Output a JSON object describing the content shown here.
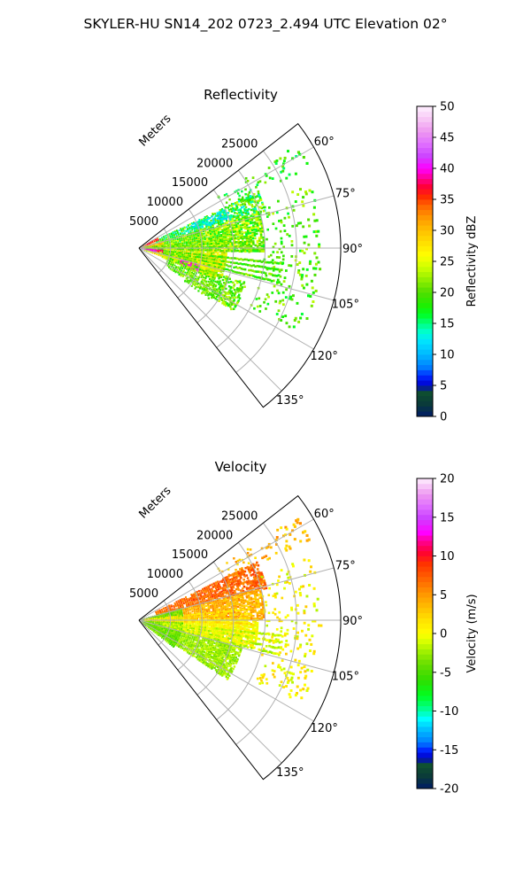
{
  "figure": {
    "suptitle": "SKYLER-HU  SN14_202  0723_2.494 UTC Elevation 02°"
  },
  "chart_data": [
    {
      "type": "heatmap",
      "subtype": "polar-sector (PPI radar sweep)",
      "title": "Reflectivity",
      "radial_label": "Meters",
      "radial_ticks": [
        5000,
        10000,
        15000,
        20000,
        25000
      ],
      "rlim": [
        0,
        32000
      ],
      "azimuth_range_deg": [
        52,
        142
      ],
      "azimuth_ticks": [
        "60°",
        "75°",
        "90°",
        "105°",
        "120°",
        "135°"
      ],
      "azimuth_tick_values": [
        60,
        75,
        90,
        105,
        120,
        135
      ],
      "grid": true,
      "colorbar": {
        "label": "Reflectivity dBZ",
        "min": 0,
        "max": 50,
        "ticks": [
          0,
          5,
          10,
          15,
          20,
          25,
          30,
          35,
          40,
          45,
          50
        ],
        "stops": [
          {
            "v": 0,
            "c": "#001c66"
          },
          {
            "v": 2,
            "c": "#0a3a3a"
          },
          {
            "v": 4,
            "c": "#0f5030"
          },
          {
            "v": 5,
            "c": "#0000cc"
          },
          {
            "v": 6.5,
            "c": "#0028ff"
          },
          {
            "v": 8,
            "c": "#0080ff"
          },
          {
            "v": 10,
            "c": "#00b8ff"
          },
          {
            "v": 12,
            "c": "#00e0ff"
          },
          {
            "v": 13.5,
            "c": "#00ffd8"
          },
          {
            "v": 15,
            "c": "#00ff80"
          },
          {
            "v": 16.5,
            "c": "#00ff20"
          },
          {
            "v": 18,
            "c": "#20ee00"
          },
          {
            "v": 20,
            "c": "#50dd00"
          },
          {
            "v": 22,
            "c": "#90ee00"
          },
          {
            "v": 24,
            "c": "#ccff00"
          },
          {
            "v": 26,
            "c": "#ffff00"
          },
          {
            "v": 28,
            "c": "#ffe000"
          },
          {
            "v": 30,
            "c": "#ffc000"
          },
          {
            "v": 32,
            "c": "#ff9900"
          },
          {
            "v": 34,
            "c": "#ff6600"
          },
          {
            "v": 35.5,
            "c": "#ff2a00"
          },
          {
            "v": 37,
            "c": "#ff0033"
          },
          {
            "v": 38.5,
            "c": "#ff0099"
          },
          {
            "v": 40,
            "c": "#ff00ff"
          },
          {
            "v": 42,
            "c": "#cc44ff"
          },
          {
            "v": 44,
            "c": "#e070ff"
          },
          {
            "v": 46,
            "c": "#ee99f0"
          },
          {
            "v": 48,
            "c": "#f7c8f5"
          },
          {
            "v": 50,
            "c": "#fff0ff"
          }
        ]
      },
      "sweep": {
        "field": "reflectivity",
        "bands": [
          {
            "az": [
              57,
              65
            ],
            "r": [
              15000,
              30000
            ],
            "v": [
              15,
              22
            ],
            "d": 0.12
          },
          {
            "az": [
              65,
              74
            ],
            "r": [
              3000,
              21000
            ],
            "v": [
              12,
              24
            ],
            "d": 0.55
          },
          {
            "az": [
              66,
              72
            ],
            "r": [
              9000,
              15000
            ],
            "v": [
              10,
              16
            ],
            "d": 0.6
          },
          {
            "az": [
              74,
              92
            ],
            "r": [
              2000,
              20000
            ],
            "v": [
              16,
              26
            ],
            "d": 0.7
          },
          {
            "az": [
              92,
              110
            ],
            "r": [
              1000,
              14000
            ],
            "v": [
              20,
              30
            ],
            "d": 0.75
          },
          {
            "az": [
              100,
              112
            ],
            "r": [
              4000,
              13000
            ],
            "v": [
              22,
              30
            ],
            "d": 0.8
          },
          {
            "az": [
              106,
              112
            ],
            "r": [
              7000,
              10000
            ],
            "v": [
              38,
              42
            ],
            "d": 0.5
          },
          {
            "az": [
              108,
              124
            ],
            "r": [
              5000,
              18000
            ],
            "v": [
              17,
              24
            ],
            "d": 0.45
          },
          {
            "az": [
              118,
              126
            ],
            "r": [
              9000,
              14000
            ],
            "v": [
              18,
              23
            ],
            "d": 0.3
          },
          {
            "az": [
              70,
              118
            ],
            "r": [
              20000,
              29000
            ],
            "v": [
              16,
              24
            ],
            "d": 0.1
          },
          {
            "az": [
              92,
              100
            ],
            "r": [
              1500,
              4000
            ],
            "v": [
              36,
              42
            ],
            "d": 0.6
          }
        ],
        "rays": [
          {
            "az": [
              62,
              68
            ],
            "r": [
              300,
              3500
            ],
            "v": [
              33,
              38
            ]
          },
          {
            "az": [
              75,
              90
            ],
            "r": [
              300,
              4000
            ],
            "v": [
              27,
              34
            ]
          },
          {
            "az": [
              95,
              102
            ],
            "r": [
              300,
              3000
            ],
            "v": [
              38,
              42
            ]
          },
          {
            "az": [
              84,
              92
            ],
            "r": [
              1000,
              18000
            ],
            "v": [
              18,
              24
            ]
          },
          {
            "az": [
              96,
              104
            ],
            "r": [
              4000,
              23000
            ],
            "v": [
              17,
              23
            ]
          }
        ]
      }
    },
    {
      "type": "heatmap",
      "subtype": "polar-sector (PPI radar sweep)",
      "title": "Velocity",
      "radial_label": "Meters",
      "radial_ticks": [
        5000,
        10000,
        15000,
        20000,
        25000
      ],
      "rlim": [
        0,
        32000
      ],
      "azimuth_range_deg": [
        52,
        142
      ],
      "azimuth_ticks": [
        "60°",
        "75°",
        "90°",
        "105°",
        "120°",
        "135°"
      ],
      "azimuth_tick_values": [
        60,
        75,
        90,
        105,
        120,
        135
      ],
      "grid": true,
      "colorbar": {
        "label": "Velocity (m/s)",
        "min": -20,
        "max": 20,
        "ticks": [
          -20,
          -15,
          -10,
          -5,
          0,
          5,
          10,
          15,
          20
        ],
        "stops": [
          {
            "v": -20,
            "c": "#001c66"
          },
          {
            "v": -18.5,
            "c": "#0a3a3a"
          },
          {
            "v": -17,
            "c": "#0f5030"
          },
          {
            "v": -16,
            "c": "#0000cc"
          },
          {
            "v": -15,
            "c": "#0028ff"
          },
          {
            "v": -14,
            "c": "#0080ff"
          },
          {
            "v": -12.5,
            "c": "#00b8ff"
          },
          {
            "v": -11,
            "c": "#00ffff"
          },
          {
            "v": -9.5,
            "c": "#00ff80"
          },
          {
            "v": -8,
            "c": "#00ff20"
          },
          {
            "v": -6,
            "c": "#30dd00"
          },
          {
            "v": -4,
            "c": "#66dd00"
          },
          {
            "v": -2.5,
            "c": "#99ee00"
          },
          {
            "v": -1,
            "c": "#d8ff00"
          },
          {
            "v": 0,
            "c": "#ffff00"
          },
          {
            "v": 2,
            "c": "#ffdd00"
          },
          {
            "v": 3.5,
            "c": "#ffbb00"
          },
          {
            "v": 5,
            "c": "#ff9900"
          },
          {
            "v": 7,
            "c": "#ff6600"
          },
          {
            "v": 9,
            "c": "#ff3300"
          },
          {
            "v": 10.5,
            "c": "#ff0033"
          },
          {
            "v": 12,
            "c": "#ff0099"
          },
          {
            "v": 13,
            "c": "#ff00ff"
          },
          {
            "v": 15,
            "c": "#cc44ff"
          },
          {
            "v": 16.5,
            "c": "#e070ff"
          },
          {
            "v": 18,
            "c": "#ee99f0"
          },
          {
            "v": 20,
            "c": "#fff0ff"
          }
        ]
      },
      "sweep": {
        "field": "velocity",
        "bands": [
          {
            "az": [
              57,
              65
            ],
            "r": [
              15000,
              30000
            ],
            "v": [
              1,
              6
            ],
            "d": 0.12
          },
          {
            "az": [
              64,
              76
            ],
            "r": [
              3000,
              21000
            ],
            "v": [
              5,
              9
            ],
            "d": 0.65
          },
          {
            "az": [
              76,
              90
            ],
            "r": [
              2000,
              20000
            ],
            "v": [
              2,
              6
            ],
            "d": 0.75
          },
          {
            "az": [
              90,
              104
            ],
            "r": [
              1000,
              19000
            ],
            "v": [
              -1,
              2
            ],
            "d": 0.75
          },
          {
            "az": [
              104,
              124
            ],
            "r": [
              1000,
              17000
            ],
            "v": [
              -4,
              -1
            ],
            "d": 0.7
          },
          {
            "az": [
              75,
              128
            ],
            "r": [
              300,
              7000
            ],
            "v": [
              -6,
              -2
            ],
            "d": 0.75
          },
          {
            "az": [
              70,
              118
            ],
            "r": [
              20000,
              29000
            ],
            "v": [
              -2,
              3
            ],
            "d": 0.1
          }
        ],
        "rays": [
          {
            "az": [
              84,
              92
            ],
            "r": [
              1000,
              18000
            ],
            "v": [
              0,
              3
            ]
          },
          {
            "az": [
              96,
              104
            ],
            "r": [
              4000,
              23000
            ],
            "v": [
              -3,
              0
            ]
          }
        ]
      }
    }
  ]
}
